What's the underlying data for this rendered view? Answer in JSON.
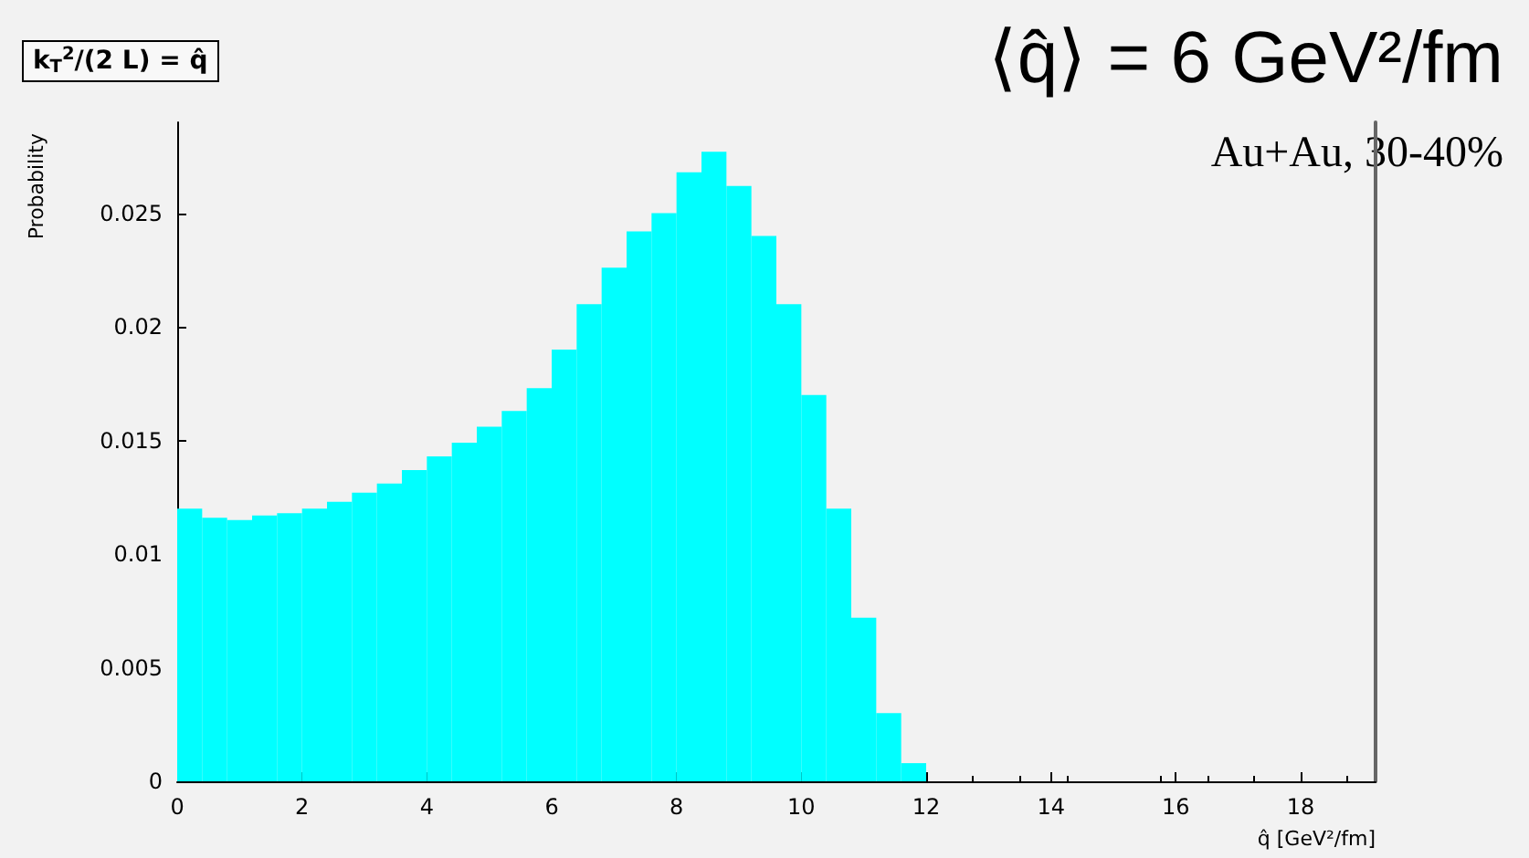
{
  "chart_data": {
    "type": "histogram",
    "title": "k$_{T}$$^{2}$/(2 L) = q̂",
    "xlabel": "q̂ [GeV²/fm]",
    "ylabel": "Probability",
    "annotations": [
      "⟨q̂⟩ = 6 GeV²/fm",
      "Au+Au, 30-40%"
    ],
    "bins": [
      0,
      0.4,
      0.8,
      1.2,
      1.6,
      2.0,
      2.4,
      2.8,
      3.2,
      3.6,
      4.0,
      4.4,
      4.8,
      5.2,
      5.6,
      6.0,
      6.4,
      6.8,
      7.2,
      7.6,
      8.0,
      8.4,
      8.8,
      9.2,
      9.6,
      10.0,
      10.4,
      10.8,
      11.2,
      11.6,
      12.0
    ],
    "values": [
      0.012,
      0.0116,
      0.0115,
      0.0117,
      0.0118,
      0.012,
      0.0123,
      0.0127,
      0.0131,
      0.0137,
      0.0143,
      0.0149,
      0.0156,
      0.0163,
      0.0173,
      0.019,
      0.021,
      0.0226,
      0.0242,
      0.025,
      0.0268,
      0.0277,
      0.0262,
      0.024,
      0.021,
      0.017,
      0.012,
      0.0072,
      0.003,
      0.0008
    ],
    "color": "#00ffff",
    "xlim": [
      0,
      19.2
    ],
    "xticks": [
      0,
      2,
      4,
      6,
      8,
      10,
      12,
      14,
      16,
      18
    ],
    "ylim": [
      0,
      0.029
    ],
    "yticks": [
      0,
      0.005,
      0.01,
      0.015,
      0.02,
      0.025
    ],
    "grid": false
  }
}
